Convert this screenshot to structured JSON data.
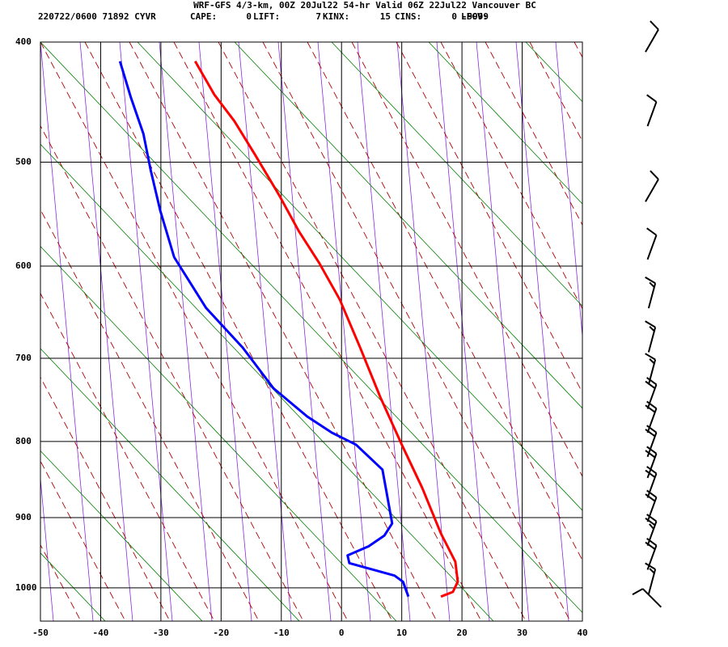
{
  "chart_data": {
    "type": "skewt",
    "title": "WRF-GFS 4/3-km, 00Z 20Jul22 54-hr Valid 06Z 22Jul22 Vancouver BC",
    "station": "220722/0600 71892  CYVR",
    "stats": [
      {
        "label": "CAPE:",
        "value": 0
      },
      {
        "label": "LIFT:",
        "value": 7
      },
      {
        "label": "KINX:",
        "value": 15
      },
      {
        "label": "CINS:",
        "value": 0
      },
      {
        "label": "LFCV:",
        "value": -9999
      }
    ],
    "xlim": [
      -50,
      40
    ],
    "xticks": [
      -50,
      -40,
      -30,
      -20,
      -10,
      0,
      10,
      20,
      30,
      40
    ],
    "ylim": [
      1050,
      400
    ],
    "yticks": [
      400,
      500,
      600,
      700,
      800,
      900,
      1000
    ],
    "grid": true,
    "series": [
      {
        "color": "#ff0000",
        "pressure": [
          415,
          442,
          464,
          493,
          530,
          565,
          597,
          635,
          688,
          745,
          804,
          860,
          922,
          940,
          962,
          991,
          1006,
          1013
        ],
        "values": [
          -24.3,
          -21.1,
          -17.8,
          -14.4,
          -10.4,
          -7.1,
          -3.7,
          -0.3,
          3.1,
          6.4,
          10.0,
          13.4,
          16.5,
          17.6,
          18.9,
          19.3,
          18.5,
          16.5
        ]
      },
      {
        "color": "#0000ff",
        "pressure": [
          415,
          444,
          475,
          507,
          545,
          591,
          644,
          688,
          735,
          769,
          789,
          804,
          836,
          867,
          908,
          925,
          940,
          953,
          964,
          982,
          991,
          1013
        ],
        "values": [
          -36.8,
          -35.0,
          -32.9,
          -31.7,
          -30.1,
          -27.8,
          -22.5,
          -16.4,
          -11.3,
          -5.7,
          -1.6,
          2.4,
          6.8,
          7.5,
          8.4,
          7.1,
          4.5,
          1.0,
          1.3,
          8.8,
          10.2,
          11.1
        ]
      }
    ],
    "wind": {
      "pressure": [
        399,
        458,
        526,
        581,
        631,
        679,
        716,
        745,
        774,
        804,
        831,
        857,
        889,
        922,
        956,
        991,
        1015
      ],
      "direction": [
        30,
        20,
        30,
        20,
        15,
        15,
        15,
        20,
        20,
        20,
        20,
        20,
        20,
        20,
        20,
        15,
        315
      ],
      "speed": [
        10,
        10,
        10,
        10,
        15,
        15,
        15,
        20,
        20,
        20,
        20,
        20,
        20,
        25,
        20,
        15,
        10
      ]
    }
  }
}
